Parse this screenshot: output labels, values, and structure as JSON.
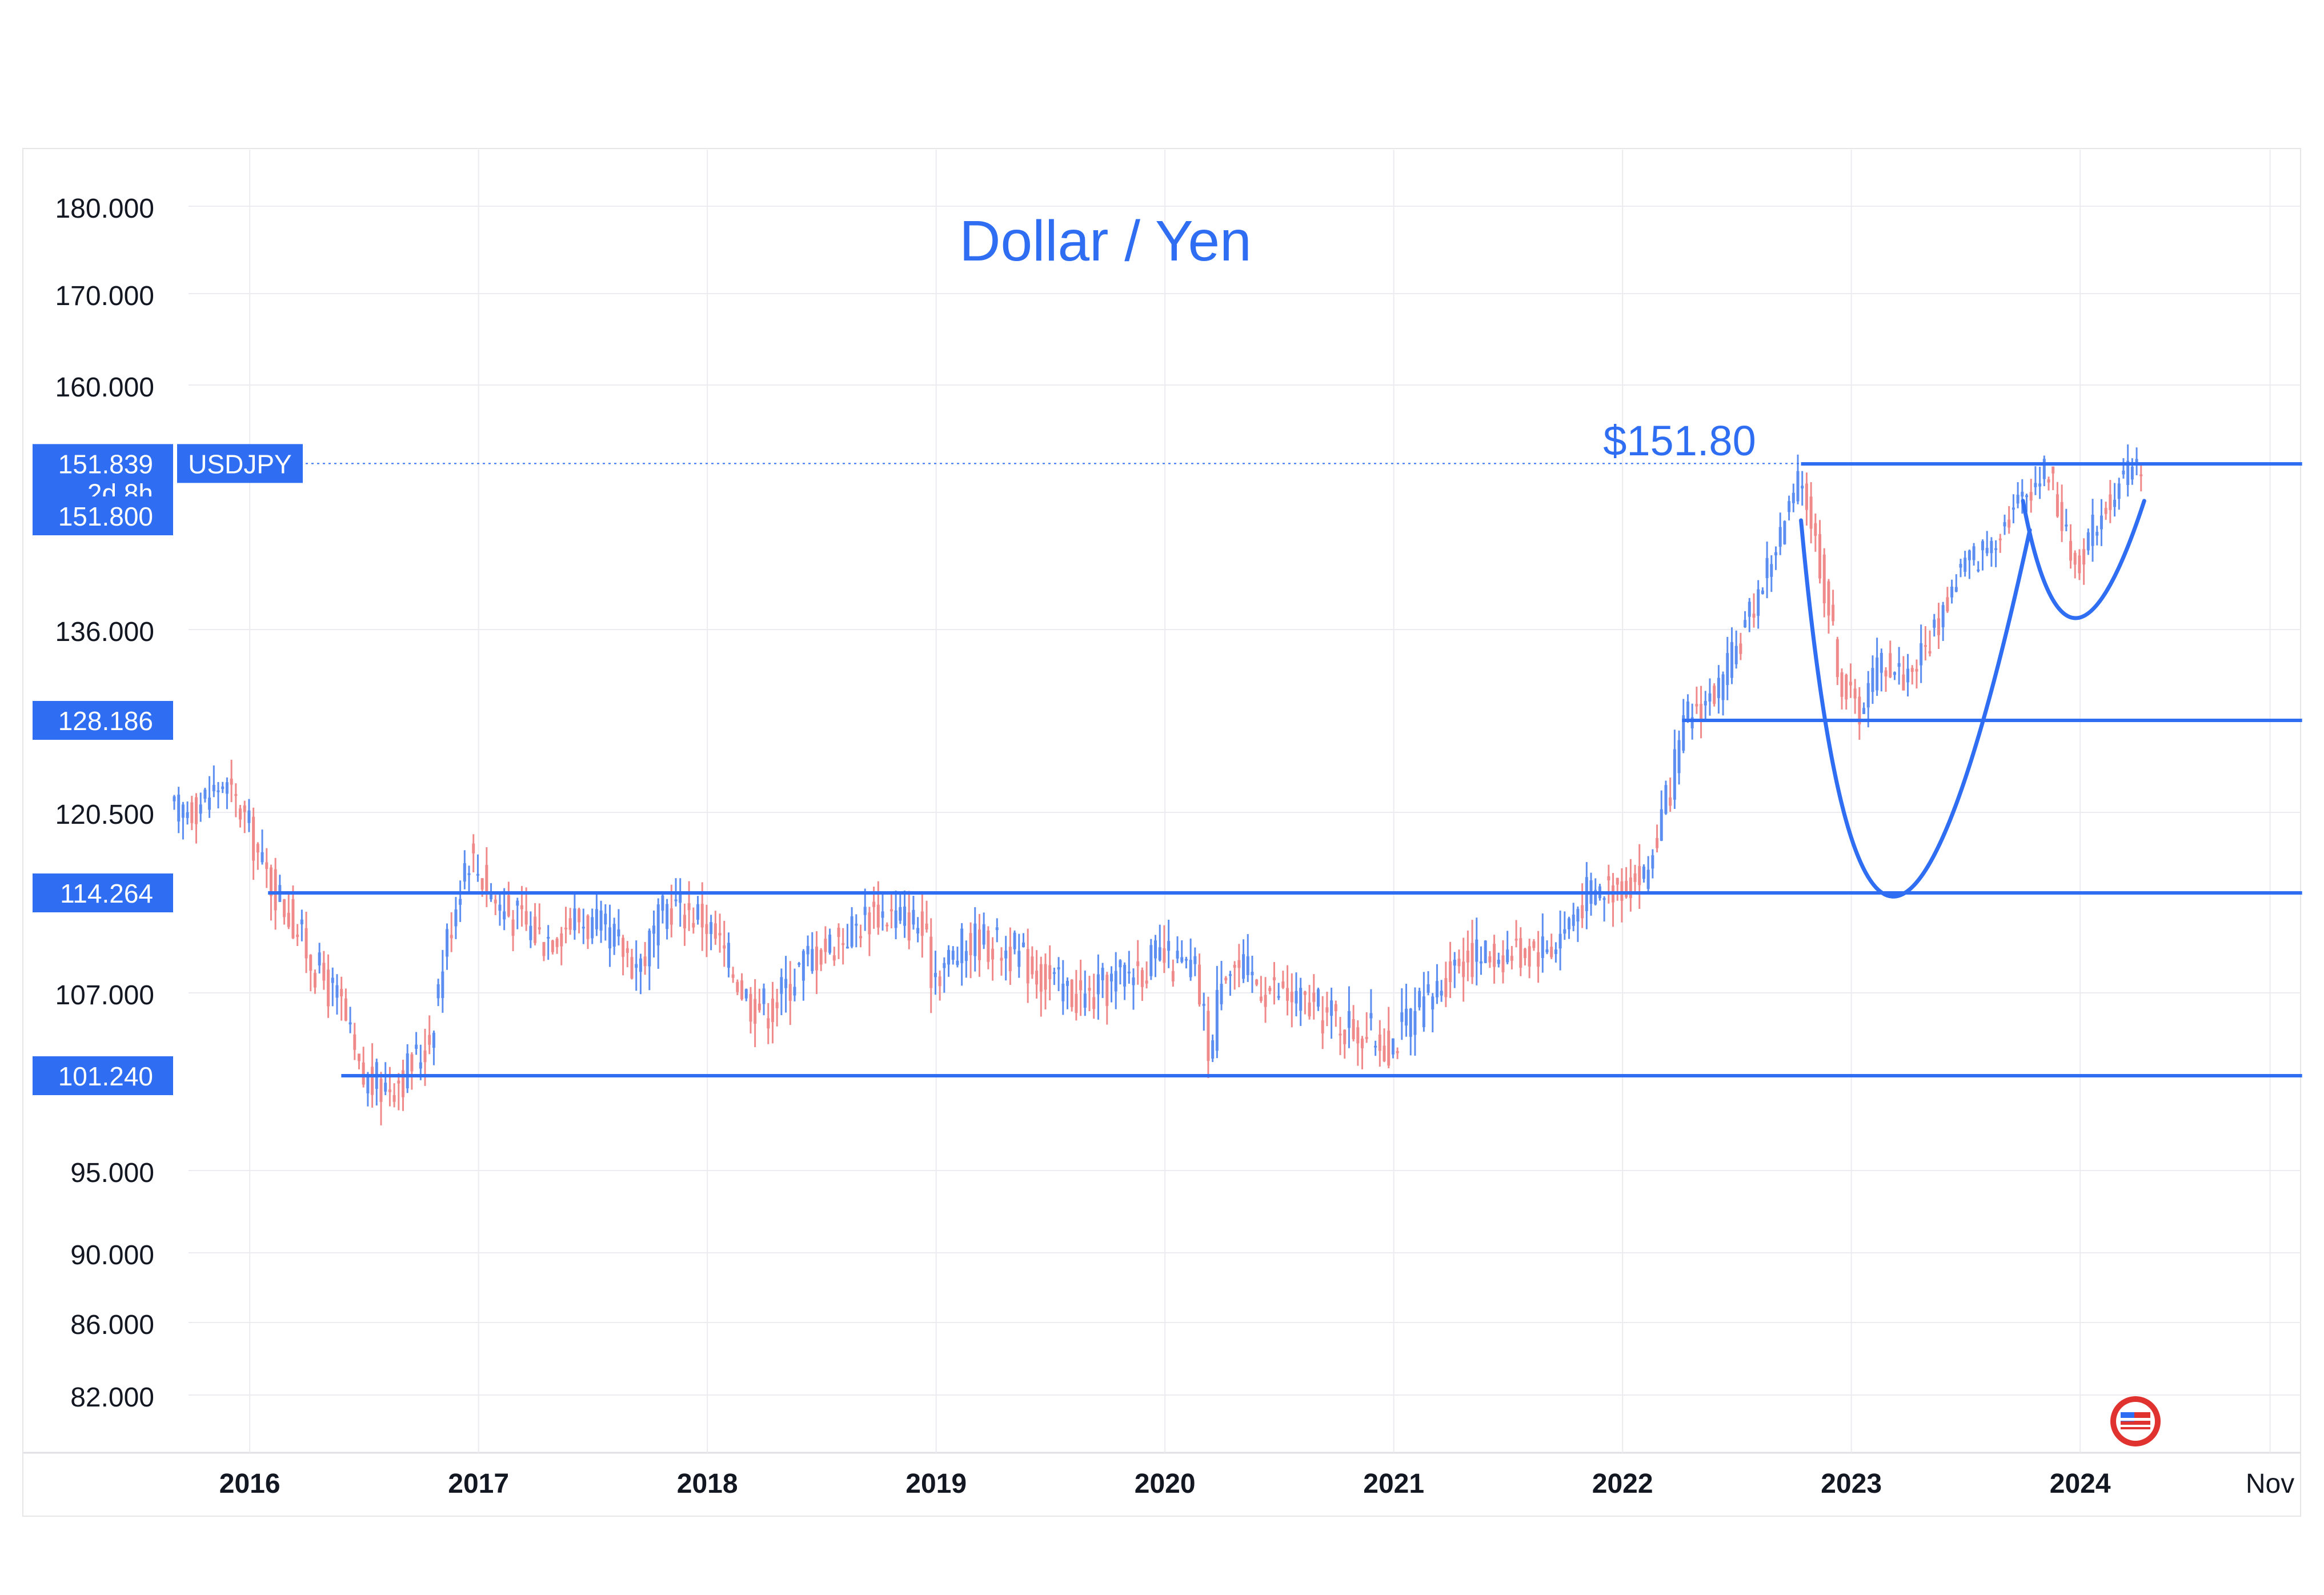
{
  "chart_data": {
    "type": "candlestick",
    "title": "Dollar / Yen",
    "symbol": "USDJPY",
    "annotation": "$151.80",
    "colors": {
      "up": "#5b8ef0",
      "down": "#f08a8a",
      "accent": "#2f6ef2",
      "grid": "#ececf0",
      "axis_text": "#131722",
      "badge_text": "#ffffff"
    },
    "y_axis": {
      "scale": "log-compressed",
      "range": [
        79,
        185
      ],
      "ticks": [
        {
          "value": 180,
          "label": "180.000"
        },
        {
          "value": 170,
          "label": "170.000"
        },
        {
          "value": 160,
          "label": "160.000"
        },
        {
          "value": 136,
          "label": "136.000"
        },
        {
          "value": 120.5,
          "label": "120.500"
        },
        {
          "value": 107,
          "label": "107.000"
        },
        {
          "value": 95,
          "label": "95.000"
        },
        {
          "value": 90,
          "label": "90.000"
        },
        {
          "value": 86,
          "label": "86.000"
        },
        {
          "value": 82,
          "label": "82.000"
        }
      ]
    },
    "x_axis": {
      "range": [
        "2015-08",
        "2024-12"
      ],
      "ticks": [
        {
          "date": 2016.0,
          "label": "2016"
        },
        {
          "date": 2017.0,
          "label": "2017"
        },
        {
          "date": 2018.0,
          "label": "2018"
        },
        {
          "date": 2019.0,
          "label": "2019"
        },
        {
          "date": 2020.0,
          "label": "2020"
        },
        {
          "date": 2021.0,
          "label": "2021"
        },
        {
          "date": 2022.0,
          "label": "2022"
        },
        {
          "date": 2023.0,
          "label": "2023"
        },
        {
          "date": 2024.0,
          "label": "2024"
        },
        {
          "date": 2024.83,
          "label": "Nov"
        }
      ]
    },
    "badges": [
      {
        "value": 151.839,
        "label": "151.839",
        "sublabel": "2d 8h",
        "tag": "USDJPY"
      },
      {
        "value": 151.8,
        "label": "151.800"
      },
      {
        "value": 128.186,
        "label": "128.186"
      },
      {
        "value": 114.264,
        "label": "114.264"
      },
      {
        "value": 101.24,
        "label": "101.240"
      }
    ],
    "horizontal_lines": [
      {
        "value": 151.8,
        "from": 2022.78,
        "to": 2024.97
      },
      {
        "value": 128.186,
        "from": 2022.26,
        "to": 2024.97
      },
      {
        "value": 114.264,
        "from": 2016.08,
        "to": 2024.97
      },
      {
        "value": 101.24,
        "from": 2016.4,
        "to": 2024.97
      }
    ],
    "price_path": [
      [
        2015.67,
        120.5
      ],
      [
        2015.78,
        121.0
      ],
      [
        2015.9,
        123.0
      ],
      [
        2016.0,
        120.0
      ],
      [
        2016.08,
        116.0
      ],
      [
        2016.2,
        112.5
      ],
      [
        2016.3,
        109.0
      ],
      [
        2016.42,
        106.0
      ],
      [
        2016.5,
        101.0
      ],
      [
        2016.6,
        100.5
      ],
      [
        2016.7,
        101.5
      ],
      [
        2016.8,
        103.5
      ],
      [
        2016.87,
        110.0
      ],
      [
        2016.97,
        117.5
      ],
      [
        2017.1,
        113.5
      ],
      [
        2017.3,
        111.0
      ],
      [
        2017.45,
        112.5
      ],
      [
        2017.6,
        111.0
      ],
      [
        2017.72,
        109.0
      ],
      [
        2017.85,
        113.5
      ],
      [
        2018.0,
        112.5
      ],
      [
        2018.12,
        109.0
      ],
      [
        2018.2,
        106.5
      ],
      [
        2018.3,
        106.0
      ],
      [
        2018.45,
        109.5
      ],
      [
        2018.6,
        111.0
      ],
      [
        2018.75,
        113.0
      ],
      [
        2018.95,
        112.0
      ],
      [
        2019.0,
        108.5
      ],
      [
        2019.2,
        111.0
      ],
      [
        2019.35,
        110.0
      ],
      [
        2019.55,
        107.5
      ],
      [
        2019.68,
        106.5
      ],
      [
        2019.85,
        108.5
      ],
      [
        2020.0,
        109.5
      ],
      [
        2020.15,
        108.5
      ],
      [
        2020.22,
        102.5
      ],
      [
        2020.27,
        109.5
      ],
      [
        2020.45,
        107.5
      ],
      [
        2020.65,
        106.0
      ],
      [
        2020.85,
        104.5
      ],
      [
        2021.0,
        103.5
      ],
      [
        2021.15,
        106.0
      ],
      [
        2021.3,
        109.5
      ],
      [
        2021.55,
        110.0
      ],
      [
        2021.72,
        110.5
      ],
      [
        2021.85,
        114.0
      ],
      [
        2022.0,
        115.0
      ],
      [
        2022.12,
        115.5
      ],
      [
        2022.22,
        122.0
      ],
      [
        2022.3,
        128.5
      ],
      [
        2022.45,
        131.0
      ],
      [
        2022.55,
        136.0
      ],
      [
        2022.7,
        144.0
      ],
      [
        2022.8,
        150.5
      ],
      [
        2022.88,
        142.0
      ],
      [
        2022.98,
        131.0
      ],
      [
        2023.05,
        129.0
      ],
      [
        2023.15,
        133.5
      ],
      [
        2023.25,
        132.0
      ],
      [
        2023.35,
        134.5
      ],
      [
        2023.5,
        141.5
      ],
      [
        2023.6,
        143.0
      ],
      [
        2023.72,
        147.0
      ],
      [
        2023.8,
        149.5
      ],
      [
        2023.88,
        151.5
      ],
      [
        2023.96,
        144.0
      ],
      [
        2024.0,
        141.5
      ],
      [
        2024.1,
        146.5
      ],
      [
        2024.2,
        150.0
      ],
      [
        2024.27,
        151.6
      ]
    ],
    "cup_curves": [
      {
        "points": [
          [
            2022.78,
            146.0
          ],
          [
            2023.18,
            114.0
          ],
          [
            2023.78,
            145.0
          ]
        ]
      },
      {
        "points": [
          [
            2023.75,
            148.0
          ],
          [
            2023.98,
            137.0
          ],
          [
            2024.28,
            148.0
          ]
        ]
      }
    ],
    "logo": "tradingview-flag-icon"
  }
}
